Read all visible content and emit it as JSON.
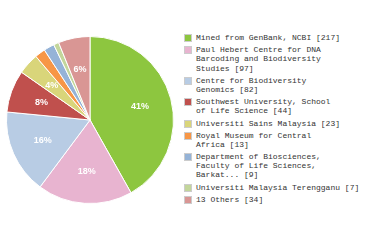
{
  "chart_data": {
    "type": "pie",
    "categories": [
      "Mined from GenBank, NCBI [217]",
      "Paul Hebert Centre for DNA\nBarcoding and Biodiversity\nStudies [97]",
      "Centre for Biodiversity\nGenomics [82]",
      "Southwest University, School\nof Life Science [44]",
      "Universiti Sains Malaysia [23]",
      "Royal Museum for Central\nAfrica [13]",
      "Department of Biosciences,\nFaculty of Life Sciences,\nBarkat... [9]",
      "Universiti Malaysia Terengganu [7]",
      "13 Others [34]"
    ],
    "values": [
      41,
      18,
      16,
      8,
      4,
      2,
      2,
      1,
      6
    ],
    "value_labels": [
      "41%",
      "18%",
      "16%",
      "8%",
      "4%",
      null,
      null,
      null,
      "6%"
    ],
    "data_labels": true,
    "colors": [
      "#8dc63f",
      "#e8b4d0",
      "#b8cce4",
      "#c0504d",
      "#d9d57a",
      "#f79646",
      "#95b3d7",
      "#c3d69b",
      "#d99694"
    ],
    "legend": "right"
  }
}
